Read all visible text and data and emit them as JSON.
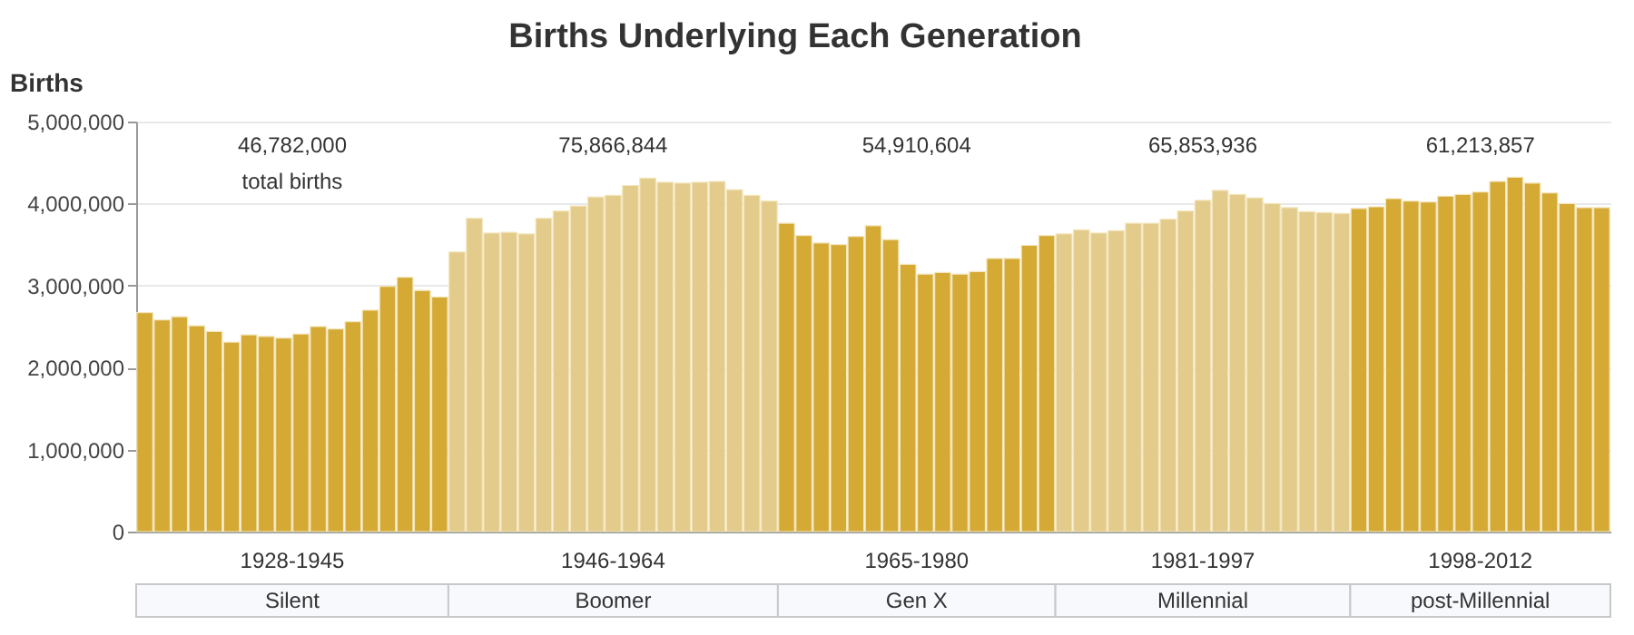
{
  "chart_data": {
    "type": "bar",
    "title": "Births Underlying Each Generation",
    "ylabel": "Births",
    "categories": [
      null,
      null,
      null,
      null,
      null,
      null,
      null,
      null,
      null,
      null,
      null,
      null,
      null,
      null,
      null,
      null,
      null,
      null,
      null,
      null,
      null,
      null,
      null,
      null,
      null,
      null,
      null,
      null,
      null,
      null,
      null,
      null,
      null,
      null,
      null,
      null,
      null,
      null,
      null,
      null,
      null,
      null,
      null,
      null,
      null,
      null,
      null,
      null,
      null,
      null,
      null,
      null,
      null,
      null,
      null,
      null,
      null,
      null,
      null,
      null,
      null,
      null,
      null,
      null,
      null,
      null,
      null,
      null,
      null,
      null,
      null,
      null,
      null,
      null,
      null,
      null,
      null,
      null,
      null,
      null,
      null,
      null,
      null,
      null,
      null
    ],
    "values": [
      2670000,
      2580000,
      2620000,
      2510000,
      2440000,
      2310000,
      2400000,
      2380000,
      2360000,
      2410000,
      2500000,
      2470000,
      2560000,
      2700000,
      2990000,
      3100000,
      2940000,
      2860000,
      3410000,
      3820000,
      3640000,
      3650000,
      3630000,
      3820000,
      3910000,
      3970000,
      4080000,
      4100000,
      4220000,
      4310000,
      4260000,
      4250000,
      4260000,
      4270000,
      4170000,
      4100000,
      4030000,
      3760000,
      3610000,
      3520000,
      3500000,
      3600000,
      3730000,
      3560000,
      3260000,
      3140000,
      3160000,
      3140000,
      3170000,
      3330000,
      3330000,
      3490000,
      3610000,
      3630000,
      3680000,
      3640000,
      3670000,
      3760000,
      3760000,
      3810000,
      3910000,
      4040000,
      4160000,
      4110000,
      4070000,
      4000000,
      3950000,
      3900000,
      3890000,
      3880000,
      3940000,
      3960000,
      4060000,
      4030000,
      4020000,
      4090000,
      4110000,
      4140000,
      4270000,
      4320000,
      4250000,
      4130000,
      4000000,
      3950000,
      3950000
    ],
    "colors": [
      "#d4aa35",
      "#d4aa35",
      "#d4aa35",
      "#d4aa35",
      "#d4aa35",
      "#d4aa35",
      "#d4aa35",
      "#d4aa35",
      "#d4aa35",
      "#d4aa35",
      "#d4aa35",
      "#d4aa35",
      "#d4aa35",
      "#d4aa35",
      "#d4aa35",
      "#d4aa35",
      "#d4aa35",
      "#d4aa35",
      "#e3cc8b",
      "#e3cc8b",
      "#e3cc8b",
      "#e3cc8b",
      "#e3cc8b",
      "#e3cc8b",
      "#e3cc8b",
      "#e3cc8b",
      "#e3cc8b",
      "#e3cc8b",
      "#e3cc8b",
      "#e3cc8b",
      "#e3cc8b",
      "#e3cc8b",
      "#e3cc8b",
      "#e3cc8b",
      "#e3cc8b",
      "#e3cc8b",
      "#e3cc8b",
      "#d4aa35",
      "#d4aa35",
      "#d4aa35",
      "#d4aa35",
      "#d4aa35",
      "#d4aa35",
      "#d4aa35",
      "#d4aa35",
      "#d4aa35",
      "#d4aa35",
      "#d4aa35",
      "#d4aa35",
      "#d4aa35",
      "#d4aa35",
      "#d4aa35",
      "#d4aa35",
      "#e3cc8b",
      "#e3cc8b",
      "#e3cc8b",
      "#e3cc8b",
      "#e3cc8b",
      "#e3cc8b",
      "#e3cc8b",
      "#e3cc8b",
      "#e3cc8b",
      "#e3cc8b",
      "#e3cc8b",
      "#e3cc8b",
      "#e3cc8b",
      "#e3cc8b",
      "#e3cc8b",
      "#e3cc8b",
      "#e3cc8b",
      "#d4aa35",
      "#d4aa35",
      "#d4aa35",
      "#d4aa35",
      "#d4aa35",
      "#d4aa35",
      "#d4aa35",
      "#d4aa35",
      "#d4aa35",
      "#d4aa35",
      "#d4aa35",
      "#d4aa35",
      "#d4aa35",
      "#d4aa35",
      "#d4aa35"
    ],
    "ylim": [
      0,
      5000000
    ],
    "yticks": [
      0,
      {
        "value": 1000000,
        "label": "1,000,000"
      },
      {
        "value": 2000000,
        "label": "2,000,000"
      },
      {
        "value": 3000000,
        "label": "3,000,000"
      },
      {
        "value": 4000000,
        "label": "4,000,000"
      },
      {
        "value": 5000000,
        "label": "5,000,000"
      }
    ],
    "grid": "y",
    "annotations": [
      "46,782,000",
      "75,866,844",
      "54,910,604",
      "65,853,936",
      "61,213,857",
      "total births",
      "1928-1945",
      "1946-1964",
      "1965-1980",
      "1981-1997",
      "1998-2012",
      "Silent",
      "Boomer",
      "Gen X",
      "Millennial",
      "post-Millennial"
    ]
  }
}
